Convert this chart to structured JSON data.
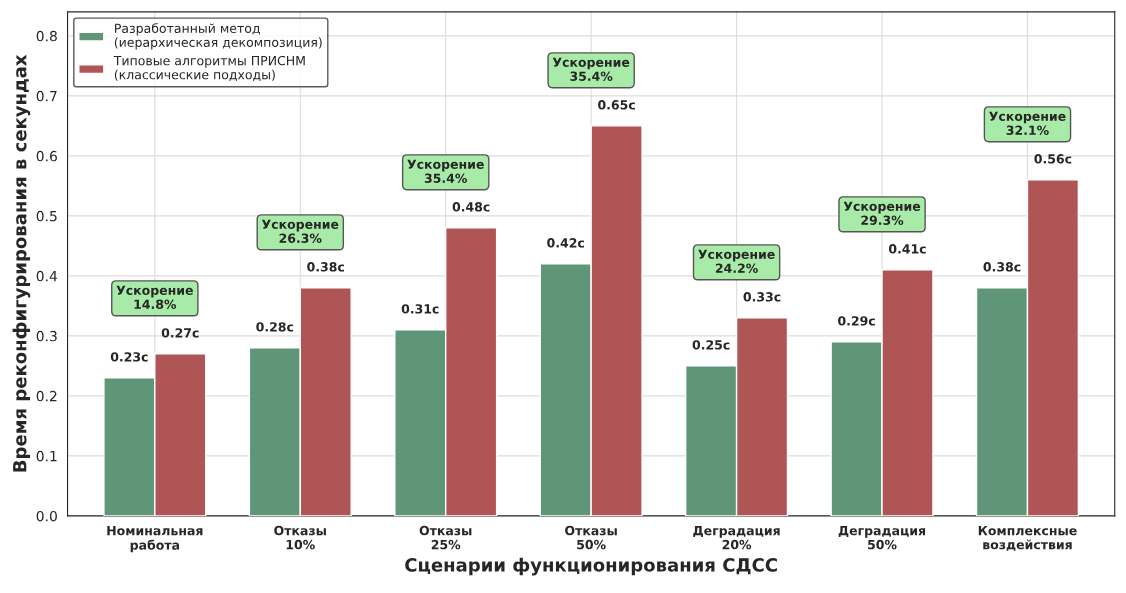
{
  "chart_data": {
    "type": "bar",
    "xlabel": "Сценарии функционирования СДСС",
    "ylabel": "Время реконфигурирования в секундах",
    "categories": [
      "Номинальная\nработа",
      "Отказы\n10%",
      "Отказы\n25%",
      "Отказы\n50%",
      "Деградация\n20%",
      "Деградация\n50%",
      "Комплексные\nвоздействия"
    ],
    "series": [
      {
        "name": "Разработанный метод\n(иерархическая декомпозиция)",
        "color": "#5e9677",
        "values": [
          0.23,
          0.28,
          0.31,
          0.42,
          0.25,
          0.29,
          0.38
        ],
        "value_labels": [
          "0.23с",
          "0.28с",
          "0.31с",
          "0.42с",
          "0.25с",
          "0.29с",
          "0.38с"
        ]
      },
      {
        "name": "Типовые алгоритмы ПРИСНМ\n(классические подходы)",
        "color": "#b05555",
        "values": [
          0.27,
          0.38,
          0.48,
          0.65,
          0.33,
          0.41,
          0.56
        ],
        "value_labels": [
          "0.27с",
          "0.38с",
          "0.48с",
          "0.65с",
          "0.33с",
          "0.41с",
          "0.56с"
        ]
      }
    ],
    "ylim": [
      0,
      0.84
    ],
    "yticks": [
      {
        "value": 0,
        "label": "0.0"
      },
      0.1,
      0.2,
      0.3,
      0.4,
      0.5,
      0.6,
      0.7,
      0.8
    ],
    "grid": true,
    "legend": "top left",
    "annotations": [
      "Ускорение\n14.8%",
      "Ускорение\n26.3%",
      "Ускорение\n35.4%",
      "Ускорение\n35.4%",
      "Ускорение\n24.2%",
      "Ускорение\n29.3%",
      "Ускорение\n32.1%"
    ]
  }
}
